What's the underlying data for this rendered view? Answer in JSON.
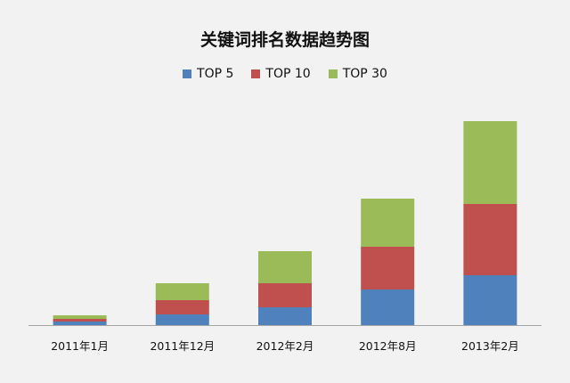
{
  "chart_data": {
    "type": "bar",
    "stacked": true,
    "title": "关键词排名数据趋势图",
    "categories": [
      "2011年1月",
      "2011年12月",
      "2012年2月",
      "2012年8月",
      "2013年2月"
    ],
    "series": [
      {
        "name": "TOP 5",
        "color": "#4f81bd",
        "values": [
          4,
          12,
          20,
          40,
          56
        ]
      },
      {
        "name": "TOP 10",
        "color": "#c0504d",
        "values": [
          3,
          16,
          27,
          48,
          80
        ]
      },
      {
        "name": "TOP 30",
        "color": "#9bbb59",
        "values": [
          4,
          19,
          36,
          54,
          93
        ]
      }
    ],
    "xlabel": "",
    "ylabel": "",
    "ylim": [
      0,
      229
    ],
    "grid": false,
    "legend_position": "top"
  }
}
